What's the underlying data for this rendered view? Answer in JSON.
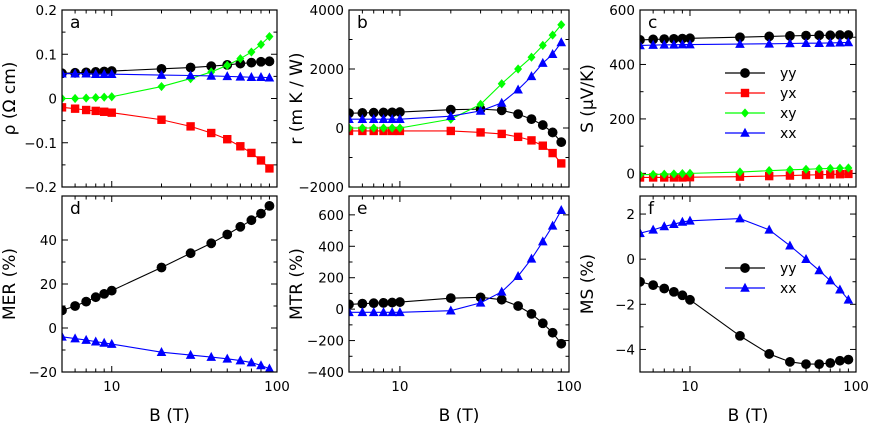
{
  "colors": {
    "yy": "#000000",
    "yx": "#ff0000",
    "xy": "#00ff00",
    "xx": "#0000ff"
  },
  "chart_data": [
    {
      "panel": "a",
      "type": "scatter",
      "xscale": "log",
      "xlim": [
        5,
        100
      ],
      "xlabel": "",
      "ylabel": "ρ (Ω cm)",
      "ylim": [
        -0.2,
        0.2
      ],
      "yticks": [
        -0.2,
        -0.1,
        0,
        0.1,
        0.2
      ],
      "yticklabels": [
        "−0.2",
        "−0.1",
        "0",
        "0.1",
        "0.2"
      ],
      "legend": null,
      "series": [
        {
          "name": "yy",
          "color": "#000000",
          "marker": "circle",
          "x": [
            5,
            6,
            7,
            8,
            9,
            10,
            20,
            30,
            40,
            50,
            60,
            70,
            80,
            90
          ],
          "y": [
            0.057,
            0.058,
            0.059,
            0.06,
            0.061,
            0.062,
            0.067,
            0.07,
            0.073,
            0.076,
            0.079,
            0.081,
            0.083,
            0.084
          ]
        },
        {
          "name": "yx",
          "color": "#ff0000",
          "marker": "square",
          "x": [
            5,
            6,
            7,
            8,
            9,
            10,
            20,
            30,
            40,
            50,
            60,
            70,
            80,
            90
          ],
          "y": [
            -0.02,
            -0.023,
            -0.026,
            -0.028,
            -0.03,
            -0.032,
            -0.048,
            -0.063,
            -0.078,
            -0.092,
            -0.108,
            -0.123,
            -0.14,
            -0.158
          ]
        },
        {
          "name": "xy",
          "color": "#00ff00",
          "marker": "diamond",
          "x": [
            5,
            6,
            7,
            8,
            9,
            10,
            20,
            30,
            40,
            50,
            60,
            70,
            80,
            90
          ],
          "y": [
            0.0,
            0.0,
            0.001,
            0.002,
            0.003,
            0.004,
            0.027,
            0.045,
            0.06,
            0.075,
            0.09,
            0.105,
            0.122,
            0.14
          ]
        },
        {
          "name": "xx",
          "color": "#0000ff",
          "marker": "triangle",
          "x": [
            5,
            6,
            7,
            8,
            9,
            10,
            20,
            30,
            40,
            50,
            60,
            70,
            80,
            90
          ],
          "y": [
            0.056,
            0.056,
            0.056,
            0.055,
            0.055,
            0.055,
            0.053,
            0.052,
            0.051,
            0.05,
            0.049,
            0.048,
            0.048,
            0.047
          ]
        }
      ]
    },
    {
      "panel": "b",
      "type": "scatter",
      "xscale": "log",
      "xlim": [
        5,
        100
      ],
      "xlabel": "",
      "ylabel": "r (m K / W)",
      "ylim": [
        -2000,
        4000
      ],
      "yticks": [
        -2000,
        0,
        2000,
        4000
      ],
      "yticklabels": [
        "−2000",
        "0",
        "2000",
        "4000"
      ],
      "legend": null,
      "series": [
        {
          "name": "yy",
          "color": "#000000",
          "marker": "circle",
          "x": [
            5,
            6,
            7,
            8,
            9,
            10,
            20,
            30,
            40,
            50,
            60,
            70,
            80,
            90
          ],
          "y": [
            500,
            510,
            520,
            525,
            530,
            540,
            620,
            640,
            600,
            470,
            300,
            100,
            -150,
            -480
          ]
        },
        {
          "name": "yx",
          "color": "#ff0000",
          "marker": "square",
          "x": [
            5,
            6,
            7,
            8,
            9,
            10,
            20,
            30,
            40,
            50,
            60,
            70,
            80,
            90
          ],
          "y": [
            -100,
            -100,
            -100,
            -100,
            -100,
            -100,
            -100,
            -150,
            -200,
            -300,
            -420,
            -600,
            -850,
            -1200
          ]
        },
        {
          "name": "xy",
          "color": "#00ff00",
          "marker": "diamond",
          "x": [
            5,
            6,
            7,
            8,
            9,
            10,
            20,
            30,
            40,
            50,
            60,
            70,
            80,
            90
          ],
          "y": [
            0,
            0,
            0,
            0,
            0,
            0,
            300,
            800,
            1500,
            2000,
            2400,
            2800,
            3150,
            3500
          ]
        },
        {
          "name": "xx",
          "color": "#0000ff",
          "marker": "triangle",
          "x": [
            5,
            6,
            7,
            8,
            9,
            10,
            20,
            30,
            40,
            50,
            60,
            70,
            80,
            90
          ],
          "y": [
            300,
            300,
            300,
            300,
            300,
            300,
            400,
            580,
            850,
            1300,
            1750,
            2200,
            2500,
            2900
          ]
        }
      ]
    },
    {
      "panel": "c",
      "type": "scatter",
      "xscale": "log",
      "xlim": [
        5,
        100
      ],
      "xlabel": "",
      "ylabel": "S (μV/K)",
      "ylim": [
        -50,
        600
      ],
      "yticks": [
        0,
        200,
        400,
        600
      ],
      "yticklabels": [
        "0",
        "200",
        "400",
        "600"
      ],
      "legend": {
        "placement": "right",
        "entries": [
          "yy",
          "yx",
          "xy",
          "xx"
        ]
      },
      "series": [
        {
          "name": "yy",
          "color": "#000000",
          "marker": "circle",
          "x": [
            5,
            6,
            7,
            8,
            9,
            10,
            20,
            30,
            40,
            50,
            60,
            70,
            80,
            90
          ],
          "y": [
            490,
            492,
            493,
            494,
            495,
            496,
            500,
            503,
            505,
            506,
            507,
            507,
            508,
            508
          ]
        },
        {
          "name": "yx",
          "color": "#ff0000",
          "marker": "square",
          "x": [
            5,
            6,
            7,
            8,
            9,
            10,
            20,
            30,
            40,
            50,
            60,
            70,
            80,
            90
          ],
          "y": [
            -15,
            -15,
            -15,
            -15,
            -15,
            -14,
            -12,
            -10,
            -8,
            -6,
            -5,
            -4,
            -3,
            -2
          ]
        },
        {
          "name": "xy",
          "color": "#00ff00",
          "marker": "diamond",
          "x": [
            5,
            6,
            7,
            8,
            9,
            10,
            20,
            30,
            40,
            50,
            60,
            70,
            80,
            90
          ],
          "y": [
            -5,
            -4,
            -3,
            -2,
            -1,
            0,
            5,
            10,
            13,
            15,
            17,
            18,
            19,
            20
          ]
        },
        {
          "name": "xx",
          "color": "#0000ff",
          "marker": "triangle",
          "x": [
            5,
            6,
            7,
            8,
            9,
            10,
            20,
            30,
            40,
            50,
            60,
            70,
            80,
            90
          ],
          "y": [
            470,
            471,
            472,
            472,
            473,
            473,
            475,
            476,
            477,
            478,
            478,
            479,
            480,
            481
          ]
        }
      ]
    },
    {
      "panel": "d",
      "type": "scatter",
      "xscale": "log",
      "xlim": [
        5,
        100
      ],
      "xlabel": "B (T)",
      "ylabel": "MER (%)",
      "ylim": [
        -20,
        60
      ],
      "yticks": [
        -20,
        0,
        20,
        40
      ],
      "yticklabels": [
        "−20",
        "0",
        "20",
        "40"
      ],
      "legend": null,
      "series": [
        {
          "name": "yy",
          "color": "#000000",
          "marker": "circle",
          "x": [
            5,
            6,
            7,
            8,
            9,
            10,
            20,
            30,
            40,
            50,
            60,
            70,
            80,
            90
          ],
          "y": [
            8,
            10,
            12,
            14,
            15.5,
            17,
            27.5,
            34,
            38.5,
            42.5,
            46,
            49,
            52,
            55.5
          ]
        },
        {
          "name": "xx",
          "color": "#0000ff",
          "marker": "triangle",
          "x": [
            5,
            6,
            7,
            8,
            9,
            10,
            20,
            30,
            40,
            50,
            60,
            70,
            80,
            90
          ],
          "y": [
            -4,
            -4.8,
            -5.5,
            -6.2,
            -6.8,
            -7.3,
            -11,
            -12.3,
            -13.2,
            -14,
            -14.8,
            -15.7,
            -17,
            -18.5
          ]
        }
      ]
    },
    {
      "panel": "e",
      "type": "scatter",
      "xscale": "log",
      "xlim": [
        5,
        100
      ],
      "xlabel": "B (T)",
      "ylabel": "MTR (%)",
      "ylim": [
        -400,
        720
      ],
      "yticks": [
        -400,
        -200,
        0,
        200,
        400,
        600
      ],
      "yticklabels": [
        "−400",
        "−200",
        "0",
        "200",
        "400",
        "600"
      ],
      "legend": null,
      "series": [
        {
          "name": "yy",
          "color": "#000000",
          "marker": "circle",
          "x": [
            5,
            6,
            7,
            8,
            9,
            10,
            20,
            30,
            40,
            50,
            60,
            70,
            80,
            90
          ],
          "y": [
            30,
            35,
            38,
            40,
            42,
            45,
            70,
            75,
            60,
            20,
            -30,
            -90,
            -150,
            -220
          ]
        },
        {
          "name": "xx",
          "color": "#0000ff",
          "marker": "triangle",
          "x": [
            5,
            6,
            7,
            8,
            9,
            10,
            20,
            30,
            40,
            50,
            60,
            70,
            80,
            90
          ],
          "y": [
            -20,
            -20,
            -20,
            -20,
            -20,
            -20,
            -10,
            40,
            110,
            210,
            320,
            430,
            530,
            630
          ]
        }
      ]
    },
    {
      "panel": "f",
      "type": "scatter",
      "xscale": "log",
      "xlim": [
        5,
        100
      ],
      "xlabel": "B (T)",
      "ylabel": "MS (%)",
      "ylim": [
        -5,
        2.8
      ],
      "yticks": [
        -4,
        -2,
        0,
        2
      ],
      "yticklabels": [
        "−4",
        "−2",
        "0",
        "2"
      ],
      "legend": {
        "placement": "right",
        "entries": [
          "yy",
          "xx"
        ]
      },
      "series": [
        {
          "name": "yy",
          "color": "#000000",
          "marker": "circle",
          "x": [
            5,
            6,
            7,
            8,
            9,
            10,
            20,
            30,
            40,
            50,
            60,
            70,
            80,
            90
          ],
          "y": [
            -1.0,
            -1.15,
            -1.3,
            -1.45,
            -1.6,
            -1.8,
            -3.4,
            -4.2,
            -4.55,
            -4.65,
            -4.65,
            -4.6,
            -4.5,
            -4.45
          ]
        },
        {
          "name": "xx",
          "color": "#0000ff",
          "marker": "triangle",
          "x": [
            5,
            6,
            7,
            8,
            9,
            10,
            20,
            30,
            40,
            50,
            60,
            70,
            80,
            90
          ],
          "y": [
            1.15,
            1.3,
            1.45,
            1.55,
            1.65,
            1.7,
            1.8,
            1.3,
            0.6,
            0.0,
            -0.5,
            -0.95,
            -1.35,
            -1.8
          ]
        }
      ]
    }
  ],
  "xaxis": {
    "ticklabels": [
      "10",
      "100"
    ]
  }
}
